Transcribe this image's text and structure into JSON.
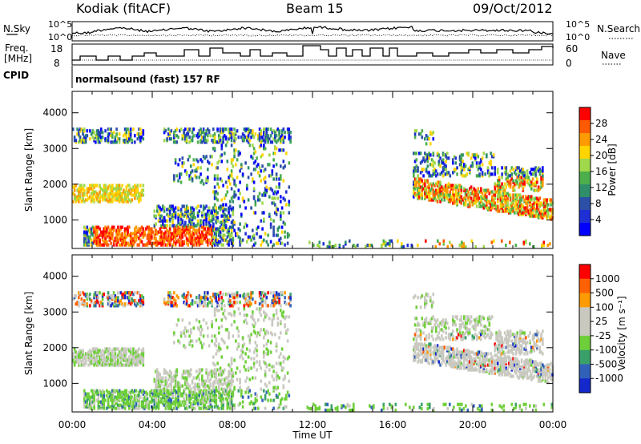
{
  "header": {
    "radar": "Kodiak (fitACF)",
    "beam": "Beam 15",
    "date": "09/Oct/2012"
  },
  "strip": {
    "nsky_label": "N.Sky",
    "nsky_ticks": [
      "10^5",
      "10^0"
    ],
    "nsearch_label": "N.Search",
    "nsearch_ticks": [
      "10^5",
      "10^0"
    ],
    "freq_label": "Freq.",
    "freq_unit": "[MHz]",
    "freq_ticks": [
      "18",
      "8"
    ],
    "nave_label": "Nave",
    "nave_ticks": [
      "60",
      "0"
    ],
    "cpid_label": "CPID",
    "cpid_text": "normalsound (fast) 157 RF"
  },
  "colors": {
    "power": [
      "#ff0000",
      "#ff5a00",
      "#ff9a00",
      "#ffd400",
      "#9fd84a",
      "#4caf4c",
      "#2f8f6a",
      "#2c4fa8",
      "#1e2fd4",
      "#0000ff"
    ],
    "velocity": [
      "#ff0000",
      "#ff6000",
      "#ff9a00",
      "#c9c9c0",
      "#c9c9c0",
      "#6fcf3a",
      "#3aa06a",
      "#3060b8",
      "#1428cc"
    ]
  },
  "chart_data": [
    {
      "type": "heatmap",
      "name": "power",
      "ylabel": "Slant Range [km]",
      "xlabel": "Time UT",
      "x_ticks": [
        "00:00",
        "04:00",
        "08:00",
        "12:00",
        "16:00",
        "20:00",
        "00:00"
      ],
      "y_ticks": [
        "1000",
        "2000",
        "3000",
        "4000"
      ],
      "ylim": [
        200,
        4600
      ],
      "xlim_hours": [
        0,
        24
      ],
      "colorbar_label": "Power [dB]",
      "colorbar_ticks": [
        "28",
        "24",
        "20",
        "16",
        "12",
        "8",
        "4"
      ]
    },
    {
      "type": "heatmap",
      "name": "velocity",
      "ylabel": "Slant Range [km]",
      "xlabel": "Time UT",
      "x_ticks": [
        "00:00",
        "04:00",
        "08:00",
        "12:00",
        "16:00",
        "20:00",
        "00:00"
      ],
      "y_ticks": [
        "1000",
        "2000",
        "3000",
        "4000"
      ],
      "ylim": [
        200,
        4600
      ],
      "xlim_hours": [
        0,
        24
      ],
      "colorbar_label": "Velocity [m s⁻¹]",
      "colorbar_ticks": [
        "1000",
        "500",
        "100",
        "25",
        "-25",
        "-100",
        "-500",
        "-1000"
      ]
    }
  ],
  "footer": {
    "xlabel": "Time UT"
  }
}
